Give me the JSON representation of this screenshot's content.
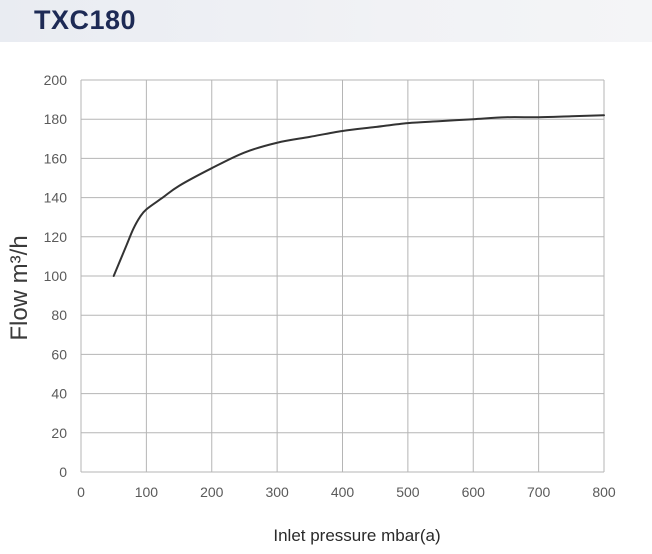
{
  "title": "TXC180",
  "chart_data": {
    "type": "line",
    "title": "TXC180",
    "xlabel": "Inlet pressure mbar(a)",
    "ylabel": "Flow m³/h",
    "xlim": [
      0,
      800
    ],
    "ylim": [
      0,
      200
    ],
    "x_ticks": [
      0,
      100,
      200,
      300,
      400,
      500,
      600,
      700,
      800
    ],
    "y_ticks": [
      0,
      20,
      40,
      60,
      80,
      100,
      120,
      140,
      160,
      180,
      200
    ],
    "grid": true,
    "series": [
      {
        "color": "#333333",
        "x": [
          50,
          60,
          70,
          80,
          90,
          100,
          125,
          150,
          200,
          250,
          300,
          350,
          400,
          450,
          500,
          550,
          600,
          650,
          700,
          750,
          800
        ],
        "y": [
          100,
          108,
          116,
          124,
          130,
          134,
          140,
          146,
          155,
          163,
          168,
          171,
          174,
          176,
          178,
          179,
          180,
          181,
          181,
          181.5,
          182
        ]
      }
    ]
  }
}
